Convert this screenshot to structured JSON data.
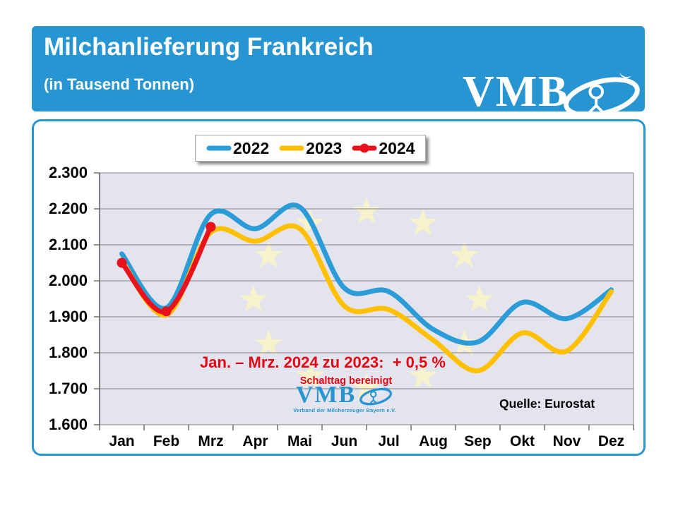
{
  "header": {
    "title": "Milchanlieferung Frankreich",
    "subtitle": "(in Tausend Tonnen)",
    "logo_text": "VMB"
  },
  "annotations": {
    "comparison": "Jan. – Mrz. 2024 zu 2023:  + 0,5 %",
    "note": "Schalttag bereinigt",
    "source": "Quelle: Eurostat",
    "watermark_text": "VMB",
    "watermark_tagline": "Verband der Milcherzeuger Bayern e.V."
  },
  "colors": {
    "banner_blue": "#2795D1",
    "box_border_blue": "#2795D1",
    "plot_background": "#E4E4EE",
    "gridline": "#808080",
    "axis_tick": "#595959",
    "eu_star": "#F6F2CC",
    "annotation_red": "#E30613",
    "watermark_blue": "#2795D1"
  },
  "chart_data": {
    "type": "line",
    "title": "Milchanlieferung Frankreich",
    "subtitle": "(in Tausend Tonnen)",
    "unit": "Tausend Tonnen",
    "categories": [
      "Jan",
      "Feb",
      "Mrz",
      "Apr",
      "Mai",
      "Jun",
      "Jul",
      "Aug",
      "Sep",
      "Okt",
      "Nov",
      "Dez"
    ],
    "y_tick_labels": [
      "2.300",
      "2.200",
      "2.100",
      "2.000",
      "1.900",
      "1.800",
      "1.700",
      "1.600"
    ],
    "ylim": [
      1600,
      2300
    ],
    "grid": "horizontal",
    "legend_position": "top",
    "background_watermark": "EU flag circle of 12 stars",
    "series": [
      {
        "name": "2022",
        "color": "#2B9CD7",
        "marker": "none",
        "values": [
          2075,
          1925,
          2185,
          2145,
          2205,
          1980,
          1970,
          1865,
          1830,
          1940,
          1895,
          1975
        ]
      },
      {
        "name": "2023",
        "color": "#FFC000",
        "marker": "none",
        "values": [
          2055,
          1905,
          2135,
          2110,
          2145,
          1930,
          1920,
          1835,
          1750,
          1855,
          1805,
          1970
        ]
      },
      {
        "name": "2024",
        "color": "#E8111C",
        "marker": "circle",
        "values": [
          2050,
          1915,
          2150,
          null,
          null,
          null,
          null,
          null,
          null,
          null,
          null,
          null
        ]
      }
    ]
  }
}
